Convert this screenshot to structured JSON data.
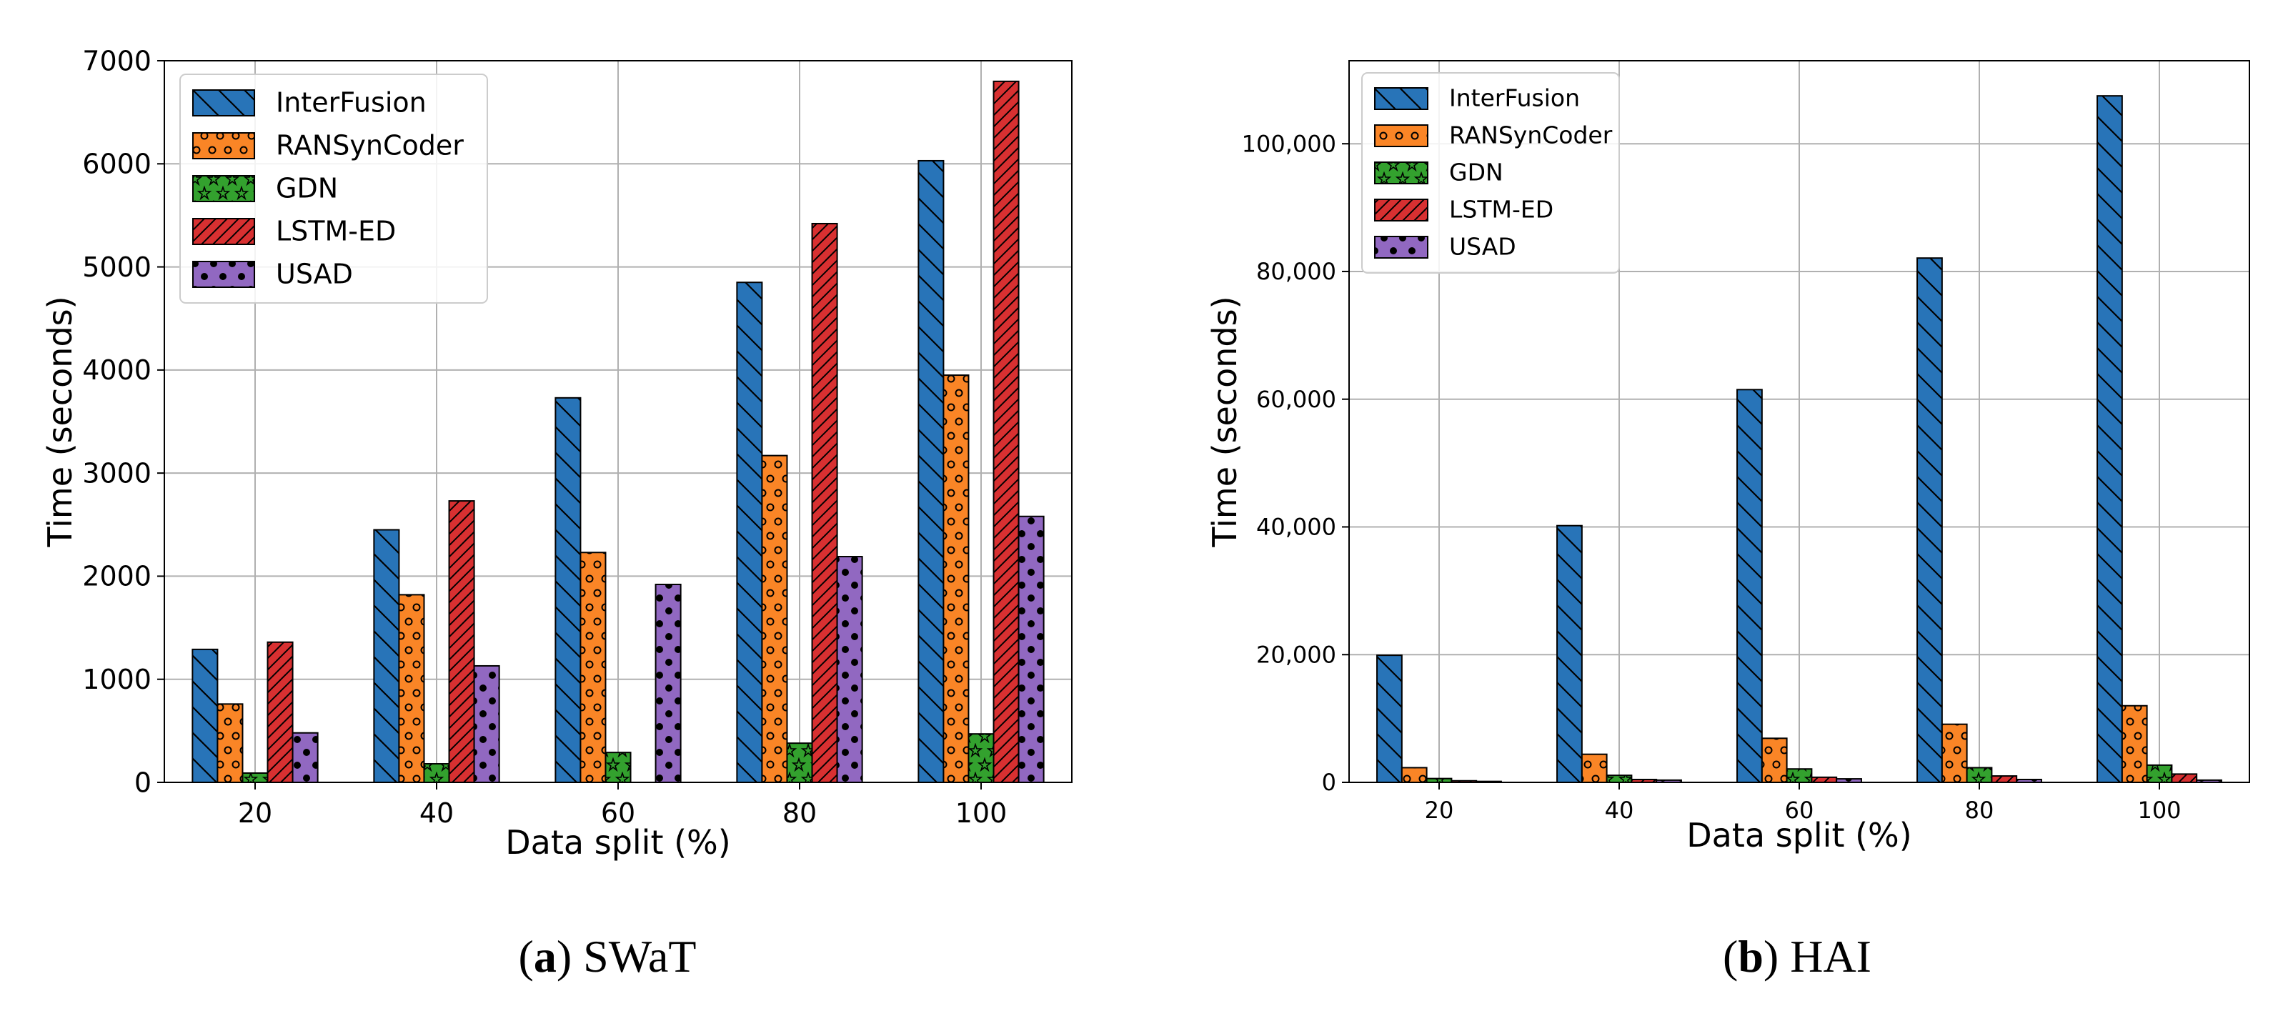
{
  "colors": {
    "InterFusion": "#2874b8",
    "RANSynCoder": "#fa8526",
    "GDN": "#33a12e",
    "LSTM-ED": "#d83031",
    "USAD": "#9168c1"
  },
  "hatches": {
    "InterFusion": "backslash",
    "RANSynCoder": "circles",
    "GDN": "stars",
    "LSTM-ED": "slash",
    "USAD": "dots"
  },
  "chart_data": [
    {
      "type": "bar",
      "caption_letter": "a",
      "caption_text": "SWaT",
      "xlabel": "Data split (%)",
      "ylabel": "Time (seconds)",
      "categories": [
        "20",
        "40",
        "60",
        "80",
        "100"
      ],
      "ylim": [
        0,
        7000
      ],
      "yticks": [
        0,
        1000,
        2000,
        3000,
        4000,
        5000,
        6000,
        7000
      ],
      "ytick_labels": [
        "0",
        "1000",
        "2000",
        "3000",
        "4000",
        "5000",
        "6000",
        "7000"
      ],
      "grid": true,
      "legend": "top-left",
      "series": [
        {
          "name": "InterFusion",
          "values": [
            1290,
            2450,
            3730,
            4850,
            6030
          ]
        },
        {
          "name": "RANSynCoder",
          "values": [
            760,
            1820,
            2230,
            3170,
            3950
          ]
        },
        {
          "name": "GDN",
          "values": [
            90,
            180,
            290,
            380,
            470
          ]
        },
        {
          "name": "LSTM-ED",
          "values": [
            1360,
            2730,
            0,
            5420,
            6800
          ]
        },
        {
          "name": "USAD",
          "values": [
            480,
            1130,
            1920,
            2190,
            2580
          ]
        }
      ]
    },
    {
      "type": "bar",
      "caption_letter": "b",
      "caption_text": "HAI",
      "xlabel": "Data split (%)",
      "ylabel": "Time (seconds)",
      "categories": [
        "20",
        "40",
        "60",
        "80",
        "100"
      ],
      "ylim": [
        0,
        113000
      ],
      "yticks": [
        0,
        20000,
        40000,
        60000,
        80000,
        100000
      ],
      "ytick_labels": [
        "0",
        "20,000",
        "40,000",
        "60,000",
        "80,000",
        "100,000"
      ],
      "grid": true,
      "legend": "top-left",
      "series": [
        {
          "name": "InterFusion",
          "values": [
            19900,
            40200,
            61500,
            82100,
            107500
          ]
        },
        {
          "name": "RANSynCoder",
          "values": [
            2300,
            4400,
            6900,
            9100,
            12000
          ]
        },
        {
          "name": "GDN",
          "values": [
            600,
            1100,
            2100,
            2300,
            2700
          ]
        },
        {
          "name": "LSTM-ED",
          "values": [
            250,
            450,
            800,
            1000,
            1300
          ]
        },
        {
          "name": "USAD",
          "values": [
            150,
            350,
            550,
            450,
            350
          ]
        }
      ]
    }
  ]
}
